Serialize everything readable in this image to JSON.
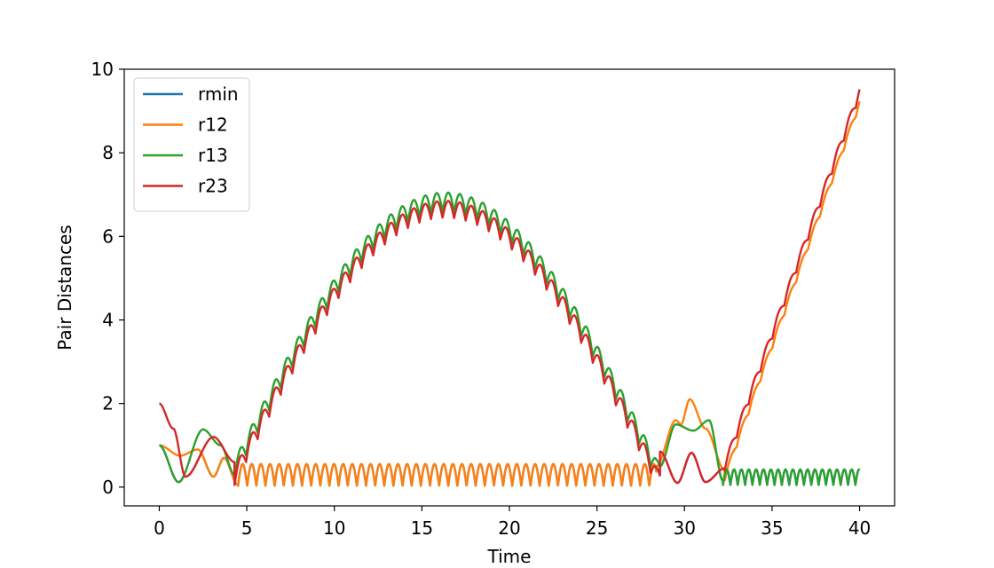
{
  "chart_data": {
    "type": "line",
    "title": "",
    "xlabel": "Time",
    "ylabel": "Pair Distances",
    "xlim": [
      -2,
      42
    ],
    "ylim": [
      -0.45,
      10
    ],
    "xticks": [
      0,
      5,
      10,
      15,
      20,
      25,
      30,
      35,
      40
    ],
    "yticks": [
      0,
      2,
      4,
      6,
      8,
      10
    ],
    "grid": false,
    "legend_position": "top-left",
    "series": [
      {
        "name": "rmin",
        "color": "#1f77b4"
      },
      {
        "name": "r12",
        "color": "#ff7f0e"
      },
      {
        "name": "r13",
        "color": "#2ca02c"
      },
      {
        "name": "r23",
        "color": "#d62728"
      }
    ],
    "key_points": {
      "r12": [
        [
          0,
          1.0
        ],
        [
          1.2,
          0.75
        ],
        [
          2.2,
          0.9
        ],
        [
          3.1,
          0.25
        ],
        [
          4.5,
          0.05
        ],
        [
          5,
          0.55
        ],
        [
          28.3,
          0.55
        ],
        [
          28.5,
          0.5
        ],
        [
          29.5,
          1.6
        ],
        [
          30.2,
          2.1
        ],
        [
          31.2,
          1.4
        ],
        [
          32.2,
          0.4
        ],
        [
          33,
          1.0
        ],
        [
          35,
          4.6
        ],
        [
          38,
          7.4
        ],
        [
          40,
          9.2
        ]
      ],
      "r13": [
        [
          0,
          1.0
        ],
        [
          1.1,
          0.12
        ],
        [
          2.5,
          1.38
        ],
        [
          3.5,
          1.0
        ],
        [
          4.2,
          0.3
        ],
        [
          5,
          1.6
        ],
        [
          7,
          3.6
        ],
        [
          10,
          5.4
        ],
        [
          13,
          6.3
        ],
        [
          16,
          6.75
        ],
        [
          19,
          6.5
        ],
        [
          22,
          5.9
        ],
        [
          25,
          4.6
        ],
        [
          27,
          3.1
        ],
        [
          28.5,
          0.8
        ],
        [
          29.6,
          1.5
        ],
        [
          30.5,
          1.35
        ],
        [
          31.4,
          1.6
        ],
        [
          32.2,
          0.1
        ],
        [
          32.3,
          0.4
        ],
        [
          40,
          0.4
        ]
      ],
      "r23": [
        [
          0,
          2.0
        ],
        [
          0.8,
          1.4
        ],
        [
          1.5,
          0.25
        ],
        [
          2.3,
          1.0
        ],
        [
          3.1,
          1.2
        ],
        [
          4.3,
          0.6
        ],
        [
          5,
          1.6
        ],
        [
          7,
          3.4
        ],
        [
          10,
          5.2
        ],
        [
          13,
          6.0
        ],
        [
          16,
          6.4
        ],
        [
          19,
          6.2
        ],
        [
          22,
          5.6
        ],
        [
          25,
          4.2
        ],
        [
          27,
          2.4
        ],
        [
          28.5,
          0.85
        ],
        [
          29.6,
          0.1
        ],
        [
          30.4,
          0.82
        ],
        [
          31.2,
          0.12
        ],
        [
          32.3,
          0.45
        ],
        [
          33.5,
          2.0
        ],
        [
          35,
          4.7
        ],
        [
          38,
          7.6
        ],
        [
          40,
          9.6
        ]
      ]
    }
  }
}
